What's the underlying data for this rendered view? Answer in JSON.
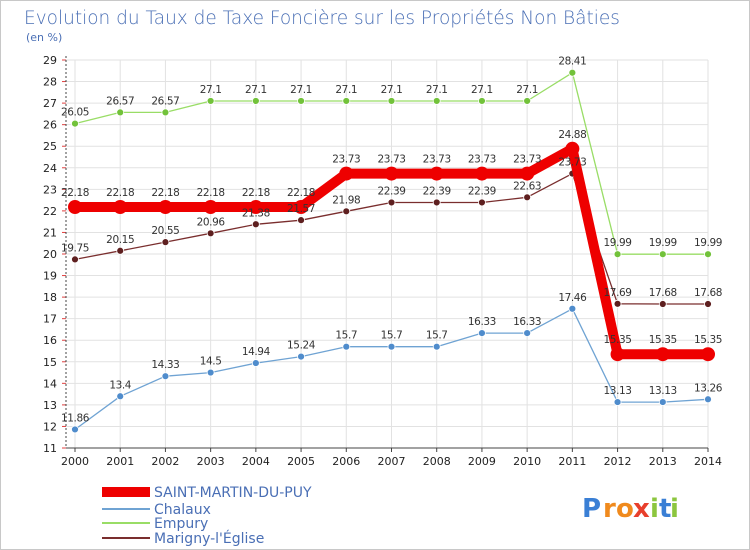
{
  "chart_data": {
    "type": "line",
    "title": "Evolution du Taux de Taxe Foncière sur les Propriétés Non Bâties",
    "subtitle": "(en %)",
    "xlabel": "",
    "ylabel": "",
    "x": [
      "2000",
      "2001",
      "2002",
      "2003",
      "2004",
      "2005",
      "2006",
      "2007",
      "2008",
      "2009",
      "2010",
      "2011",
      "2012",
      "2013",
      "2014"
    ],
    "ylim": [
      11,
      29
    ],
    "yticks": [
      "11",
      "12",
      "13",
      "14",
      "15",
      "16",
      "17",
      "18",
      "19",
      "20",
      "21",
      "22",
      "23",
      "24",
      "25",
      "26",
      "27",
      "28",
      "29"
    ],
    "grid": true,
    "legend_position": "bottom-left",
    "series": [
      {
        "name": "SAINT-MARTIN-DU-PUY",
        "color": "#ee0000",
        "values": [
          22.18,
          22.18,
          22.18,
          22.18,
          22.18,
          22.18,
          23.73,
          23.73,
          23.73,
          23.73,
          23.73,
          24.88,
          15.35,
          15.35,
          15.35
        ],
        "labels": [
          "22.18",
          "22.18",
          "22.18",
          "22.18",
          "22.18",
          "22.18",
          "23.73",
          "23.73",
          "23.73",
          "23.73",
          "23.73",
          "24.88",
          "15.35",
          "15.35",
          "15.35"
        ]
      },
      {
        "name": "Chalaux",
        "color": "#6fa3d3",
        "values": [
          11.86,
          13.4,
          14.33,
          14.5,
          14.94,
          15.24,
          15.7,
          15.7,
          15.7,
          16.33,
          16.33,
          17.46,
          13.13,
          13.13,
          13.26
        ],
        "labels": [
          "11.86",
          "13.4",
          "14.33",
          "14.5",
          "14.94",
          "15.24",
          "15.7",
          "15.7",
          "15.7",
          "16.33",
          "16.33",
          "17.46",
          "13.13",
          "13.13",
          "13.26"
        ]
      },
      {
        "name": "Empury",
        "color": "#99dd66",
        "values": [
          26.05,
          26.57,
          26.57,
          27.1,
          27.1,
          27.1,
          27.1,
          27.1,
          27.1,
          27.1,
          27.1,
          28.41,
          19.99,
          19.99,
          19.99
        ],
        "labels": [
          "26.05",
          "26.57",
          "26.57",
          "27.1",
          "27.1",
          "27.1",
          "27.1",
          "27.1",
          "27.1",
          "27.1",
          "27.1",
          "28.41",
          "19.99",
          "19.99",
          "19.99"
        ]
      },
      {
        "name": "Marigny-l'Église",
        "color": "#7a2e2e",
        "values": [
          19.75,
          20.15,
          20.55,
          20.96,
          21.38,
          21.57,
          21.98,
          22.39,
          22.39,
          22.39,
          22.63,
          23.73,
          17.69,
          17.68,
          17.68
        ],
        "labels": [
          "19.75",
          "20.15",
          "20.55",
          "20.96",
          "21.38",
          "21.57",
          "21.98",
          "22.39",
          "22.39",
          "22.39",
          "22.63",
          "23.73",
          "17.69",
          "17.68",
          "17.68"
        ]
      }
    ]
  },
  "logo": {
    "text": "Proxiti",
    "letters": [
      "P",
      "r",
      "o",
      "x",
      "i",
      "t",
      "i"
    ],
    "colors": [
      "#3a7fd5",
      "#f08a1d",
      "#f08a1d",
      "#e83f2c",
      "#8cc63f",
      "#3a7fd5",
      "#8cc63f"
    ]
  }
}
